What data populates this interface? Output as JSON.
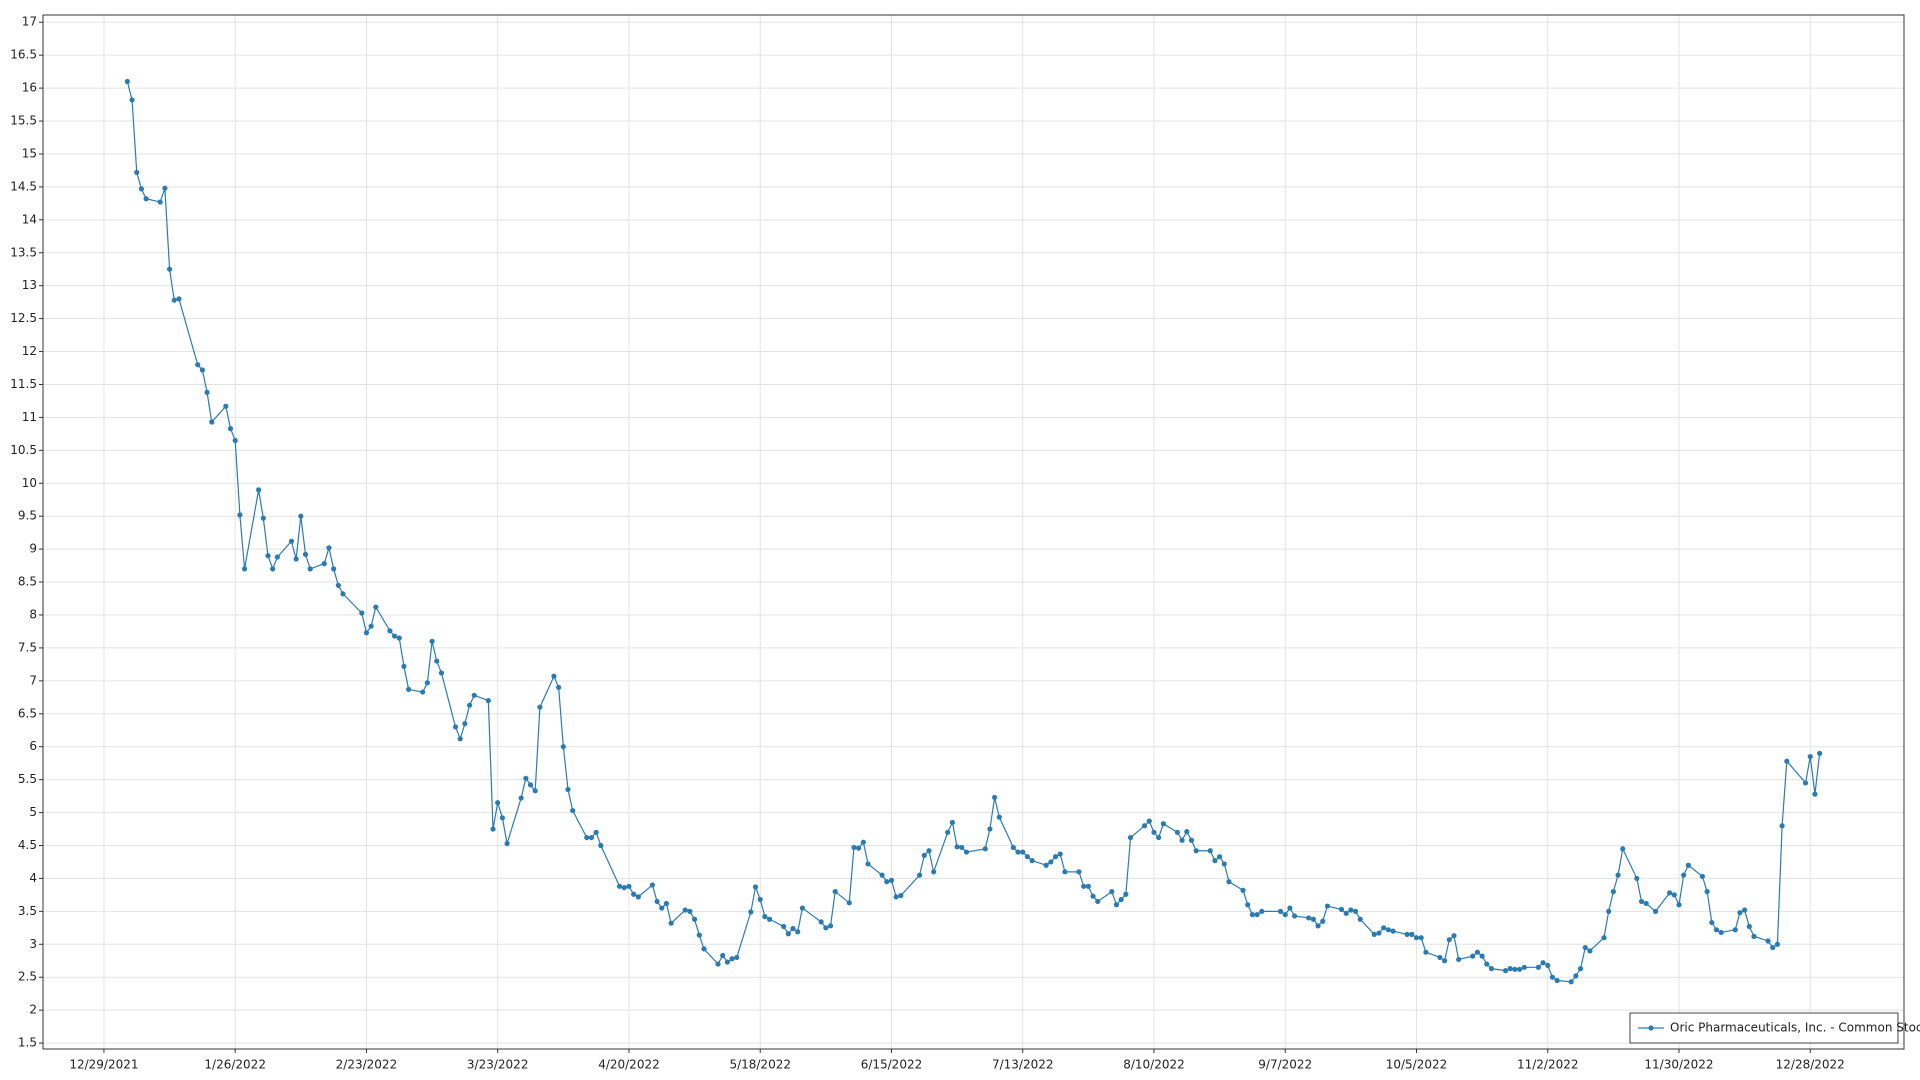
{
  "chart_data": {
    "type": "line",
    "x": [
      "1/3/2022",
      "1/4/2022",
      "1/5/2022",
      "1/6/2022",
      "1/7/2022",
      "1/10/2022",
      "1/11/2022",
      "1/12/2022",
      "1/13/2022",
      "1/14/2022",
      "1/18/2022",
      "1/19/2022",
      "1/20/2022",
      "1/21/2022",
      "1/24/2022",
      "1/25/2022",
      "1/26/2022",
      "1/27/2022",
      "1/28/2022",
      "1/31/2022",
      "2/1/2022",
      "2/2/2022",
      "2/3/2022",
      "2/4/2022",
      "2/7/2022",
      "2/8/2022",
      "2/9/2022",
      "2/10/2022",
      "2/11/2022",
      "2/14/2022",
      "2/15/2022",
      "2/16/2022",
      "2/17/2022",
      "2/18/2022",
      "2/22/2022",
      "2/23/2022",
      "2/24/2022",
      "2/25/2022",
      "2/28/2022",
      "3/1/2022",
      "3/2/2022",
      "3/3/2022",
      "3/4/2022",
      "3/7/2022",
      "3/8/2022",
      "3/9/2022",
      "3/10/2022",
      "3/11/2022",
      "3/14/2022",
      "3/15/2022",
      "3/16/2022",
      "3/17/2022",
      "3/18/2022",
      "3/21/2022",
      "3/22/2022",
      "3/23/2022",
      "3/24/2022",
      "3/25/2022",
      "3/28/2022",
      "3/29/2022",
      "3/30/2022",
      "3/31/2022",
      "4/1/2022",
      "4/4/2022",
      "4/5/2022",
      "4/6/2022",
      "4/7/2022",
      "4/8/2022",
      "4/11/2022",
      "4/12/2022",
      "4/13/2022",
      "4/14/2022",
      "4/18/2022",
      "4/19/2022",
      "4/20/2022",
      "4/21/2022",
      "4/22/2022",
      "4/25/2022",
      "4/26/2022",
      "4/27/2022",
      "4/28/2022",
      "4/29/2022",
      "5/2/2022",
      "5/3/2022",
      "5/4/2022",
      "5/5/2022",
      "5/6/2022",
      "5/9/2022",
      "5/10/2022",
      "5/11/2022",
      "5/12/2022",
      "5/13/2022",
      "5/16/2022",
      "5/17/2022",
      "5/18/2022",
      "5/19/2022",
      "5/20/2022",
      "5/23/2022",
      "5/24/2022",
      "5/25/2022",
      "5/26/2022",
      "5/27/2022",
      "5/31/2022",
      "6/1/2022",
      "6/2/2022",
      "6/3/2022",
      "6/6/2022",
      "6/7/2022",
      "6/8/2022",
      "6/9/2022",
      "6/10/2022",
      "6/13/2022",
      "6/14/2022",
      "6/15/2022",
      "6/16/2022",
      "6/17/2022",
      "6/21/2022",
      "6/22/2022",
      "6/23/2022",
      "6/24/2022",
      "6/27/2022",
      "6/28/2022",
      "6/29/2022",
      "6/30/2022",
      "7/1/2022",
      "7/5/2022",
      "7/6/2022",
      "7/7/2022",
      "7/8/2022",
      "7/11/2022",
      "7/12/2022",
      "7/13/2022",
      "7/14/2022",
      "7/15/2022",
      "7/18/2022",
      "7/19/2022",
      "7/20/2022",
      "7/21/2022",
      "7/22/2022",
      "7/25/2022",
      "7/26/2022",
      "7/27/2022",
      "7/28/2022",
      "7/29/2022",
      "8/1/2022",
      "8/2/2022",
      "8/3/2022",
      "8/4/2022",
      "8/5/2022",
      "8/8/2022",
      "8/9/2022",
      "8/10/2022",
      "8/11/2022",
      "8/12/2022",
      "8/15/2022",
      "8/16/2022",
      "8/17/2022",
      "8/18/2022",
      "8/19/2022",
      "8/22/2022",
      "8/23/2022",
      "8/24/2022",
      "8/25/2022",
      "8/26/2022",
      "8/29/2022",
      "8/30/2022",
      "8/31/2022",
      "9/1/2022",
      "9/2/2022",
      "9/6/2022",
      "9/7/2022",
      "9/8/2022",
      "9/9/2022",
      "9/12/2022",
      "9/13/2022",
      "9/14/2022",
      "9/15/2022",
      "9/16/2022",
      "9/19/2022",
      "9/20/2022",
      "9/21/2022",
      "9/22/2022",
      "9/23/2022",
      "9/26/2022",
      "9/27/2022",
      "9/28/2022",
      "9/29/2022",
      "9/30/2022",
      "10/3/2022",
      "10/4/2022",
      "10/5/2022",
      "10/6/2022",
      "10/7/2022",
      "10/10/2022",
      "10/11/2022",
      "10/12/2022",
      "10/13/2022",
      "10/14/2022",
      "10/17/2022",
      "10/18/2022",
      "10/19/2022",
      "10/20/2022",
      "10/21/2022",
      "10/24/2022",
      "10/25/2022",
      "10/26/2022",
      "10/27/2022",
      "10/28/2022",
      "10/31/2022",
      "11/1/2022",
      "11/2/2022",
      "11/3/2022",
      "11/4/2022",
      "11/7/2022",
      "11/8/2022",
      "11/9/2022",
      "11/10/2022",
      "11/11/2022",
      "11/14/2022",
      "11/15/2022",
      "11/16/2022",
      "11/17/2022",
      "11/18/2022",
      "11/21/2022",
      "11/22/2022",
      "11/23/2022",
      "11/25/2022",
      "11/28/2022",
      "11/29/2022",
      "11/30/2022",
      "12/1/2022",
      "12/2/2022",
      "12/5/2022",
      "12/6/2022",
      "12/7/2022",
      "12/8/2022",
      "12/9/2022",
      "12/12/2022",
      "12/13/2022",
      "12/14/2022",
      "12/15/2022",
      "12/16/2022",
      "12/19/2022",
      "12/20/2022",
      "12/21/2022",
      "12/22/2022",
      "12/23/2022",
      "12/27/2022",
      "12/28/2022",
      "12/29/2022",
      "12/30/2022"
    ],
    "series": [
      {
        "name": "Oric Pharmaceuticals, Inc. - Common Stock",
        "color": "#2b7bb3",
        "values": [
          16.1,
          15.82,
          14.72,
          14.47,
          14.32,
          14.27,
          14.48,
          13.25,
          12.78,
          12.8,
          11.8,
          11.72,
          11.38,
          10.93,
          11.17,
          10.83,
          10.65,
          9.52,
          8.7,
          9.9,
          9.47,
          8.9,
          8.7,
          8.88,
          9.12,
          8.85,
          9.5,
          8.92,
          8.7,
          8.78,
          9.02,
          8.7,
          8.45,
          8.32,
          8.03,
          7.73,
          7.83,
          8.12,
          7.76,
          7.68,
          7.65,
          7.22,
          6.87,
          6.83,
          6.97,
          7.6,
          7.3,
          7.12,
          6.3,
          6.12,
          6.35,
          6.63,
          6.78,
          6.7,
          4.75,
          5.15,
          4.92,
          4.53,
          5.22,
          5.52,
          5.42,
          5.33,
          6.6,
          7.07,
          6.9,
          6.0,
          5.35,
          5.03,
          4.62,
          4.62,
          4.7,
          4.5,
          3.88,
          3.86,
          3.88,
          3.76,
          3.72,
          3.9,
          3.65,
          3.55,
          3.62,
          3.32,
          3.52,
          3.5,
          3.38,
          3.14,
          2.93,
          2.7,
          2.83,
          2.73,
          2.78,
          2.8,
          3.49,
          3.87,
          3.68,
          3.42,
          3.38,
          3.27,
          3.16,
          3.24,
          3.19,
          3.55,
          3.34,
          3.25,
          3.28,
          3.8,
          3.63,
          4.47,
          4.46,
          4.55,
          4.22,
          4.05,
          3.95,
          3.97,
          3.72,
          3.74,
          4.05,
          4.35,
          4.42,
          4.1,
          4.7,
          4.85,
          4.48,
          4.47,
          4.4,
          4.45,
          4.75,
          5.23,
          4.93,
          4.47,
          4.4,
          4.4,
          4.33,
          4.27,
          4.2,
          4.25,
          4.33,
          4.37,
          4.1,
          4.1,
          3.88,
          3.88,
          3.73,
          3.65,
          3.8,
          3.6,
          3.68,
          3.76,
          4.62,
          4.8,
          4.87,
          4.7,
          4.62,
          4.83,
          4.7,
          4.58,
          4.71,
          4.58,
          4.42,
          4.42,
          4.27,
          4.33,
          4.22,
          3.95,
          3.82,
          3.6,
          3.45,
          3.45,
          3.5,
          3.5,
          3.45,
          3.55,
          3.43,
          3.4,
          3.38,
          3.28,
          3.35,
          3.58,
          3.53,
          3.47,
          3.52,
          3.5,
          3.38,
          3.15,
          3.17,
          3.25,
          3.22,
          3.2,
          3.15,
          3.15,
          3.1,
          3.1,
          2.88,
          2.8,
          2.75,
          3.07,
          3.13,
          2.77,
          2.82,
          2.88,
          2.82,
          2.7,
          2.63,
          2.6,
          2.63,
          2.62,
          2.62,
          2.65,
          2.65,
          2.72,
          2.68,
          2.5,
          2.45,
          2.43,
          2.52,
          2.63,
          2.95,
          2.9,
          3.1,
          3.5,
          3.8,
          4.05,
          4.45,
          4.0,
          3.65,
          3.62,
          3.5,
          3.78,
          3.75,
          3.6,
          4.05,
          4.2,
          4.03,
          3.8,
          3.33,
          3.22,
          3.18,
          3.22,
          3.48,
          3.52,
          3.27,
          3.12,
          3.05,
          2.95,
          3.0,
          4.8,
          5.78,
          5.45,
          5.85,
          5.28,
          5.9
        ]
      }
    ],
    "xlim": [
      "12/16/2021",
      "1/17/2023"
    ],
    "xticks": [
      "12/29/2021",
      "1/26/2022",
      "2/23/2022",
      "3/23/2022",
      "4/20/2022",
      "5/18/2022",
      "6/15/2022",
      "7/13/2022",
      "8/10/2022",
      "9/7/2022",
      "10/5/2022",
      "11/2/2022",
      "11/30/2022",
      "12/28/2022"
    ],
    "ylim": [
      1.41,
      17.11
    ],
    "yticks": [
      1.5,
      2,
      2.5,
      3,
      3.5,
      4,
      4.5,
      5,
      5.5,
      6,
      6.5,
      7,
      7.5,
      8,
      8.5,
      9,
      9.5,
      10,
      10.5,
      11,
      11.5,
      12,
      12.5,
      13,
      13.5,
      14,
      14.5,
      15,
      15.5,
      16,
      16.5,
      17
    ],
    "grid": true,
    "markers": true,
    "legend": "lower right"
  }
}
